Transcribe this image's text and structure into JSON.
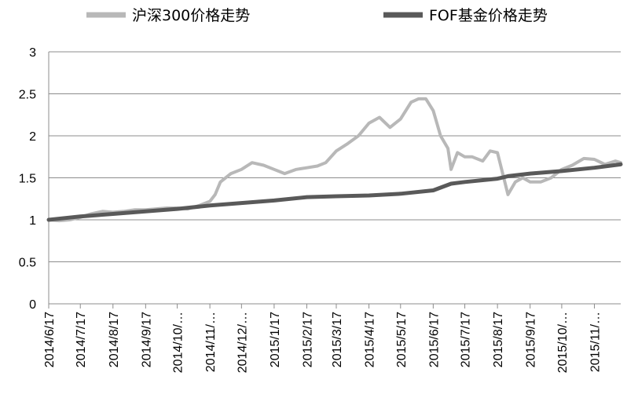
{
  "chart_data": {
    "type": "line",
    "title": "",
    "xlabel": "",
    "ylabel": "",
    "ylim": [
      0,
      3
    ],
    "yticks": [
      "0",
      "0.5",
      "1",
      "1.5",
      "2",
      "2.5",
      "3"
    ],
    "grid": "horizontal",
    "legend_position": "top",
    "x_ticks": [
      "2014/6/17",
      "2014/7/17",
      "2014/8/17",
      "2014/9/17",
      "2014/10/…",
      "2014/11/…",
      "2014/12/…",
      "2015/1/17",
      "2015/2/17",
      "2015/3/17",
      "2015/4/17",
      "2015/5/17",
      "2015/6/17",
      "2015/7/17",
      "2015/8/17",
      "2015/9/17",
      "2015/10/…",
      "2015/11/…"
    ],
    "x_range": [
      "2014/6/17",
      "2015/12/12"
    ],
    "series": [
      {
        "name": "沪深300价格走势",
        "color": "#b8b8b8",
        "points": [
          [
            "2014/6/17",
            1.0
          ],
          [
            "2014/6/27",
            0.99
          ],
          [
            "2014/7/7",
            1.0
          ],
          [
            "2014/7/17",
            1.03
          ],
          [
            "2014/7/27",
            1.07
          ],
          [
            "2014/8/7",
            1.1
          ],
          [
            "2014/8/17",
            1.09
          ],
          [
            "2014/8/27",
            1.1
          ],
          [
            "2014/9/7",
            1.12
          ],
          [
            "2014/9/17",
            1.12
          ],
          [
            "2014/9/27",
            1.13
          ],
          [
            "2014/10/7",
            1.14
          ],
          [
            "2014/10/17",
            1.14
          ],
          [
            "2014/10/27",
            1.13
          ],
          [
            "2014/11/7",
            1.17
          ],
          [
            "2014/11/17",
            1.22
          ],
          [
            "2014/11/22",
            1.3
          ],
          [
            "2014/11/27",
            1.45
          ],
          [
            "2014/12/2",
            1.5
          ],
          [
            "2014/12/7",
            1.55
          ],
          [
            "2014/12/17",
            1.6
          ],
          [
            "2014/12/27",
            1.68
          ],
          [
            "2015/1/7",
            1.65
          ],
          [
            "2015/1/17",
            1.6
          ],
          [
            "2015/1/27",
            1.55
          ],
          [
            "2015/2/7",
            1.6
          ],
          [
            "2015/2/17",
            1.62
          ],
          [
            "2015/2/27",
            1.64
          ],
          [
            "2015/3/7",
            1.68
          ],
          [
            "2015/3/17",
            1.82
          ],
          [
            "2015/3/27",
            1.9
          ],
          [
            "2015/4/7",
            2.0
          ],
          [
            "2015/4/17",
            2.15
          ],
          [
            "2015/4/27",
            2.22
          ],
          [
            "2015/5/7",
            2.1
          ],
          [
            "2015/5/17",
            2.2
          ],
          [
            "2015/5/27",
            2.4
          ],
          [
            "2015/6/3",
            2.44
          ],
          [
            "2015/6/10",
            2.44
          ],
          [
            "2015/6/17",
            2.3
          ],
          [
            "2015/6/24",
            2.0
          ],
          [
            "2015/7/1",
            1.85
          ],
          [
            "2015/7/4",
            1.6
          ],
          [
            "2015/7/10",
            1.8
          ],
          [
            "2015/7/17",
            1.75
          ],
          [
            "2015/7/24",
            1.75
          ],
          [
            "2015/8/3",
            1.7
          ],
          [
            "2015/8/10",
            1.82
          ],
          [
            "2015/8/17",
            1.8
          ],
          [
            "2015/8/22",
            1.55
          ],
          [
            "2015/8/27",
            1.3
          ],
          [
            "2015/9/3",
            1.45
          ],
          [
            "2015/9/10",
            1.5
          ],
          [
            "2015/9/17",
            1.45
          ],
          [
            "2015/9/27",
            1.45
          ],
          [
            "2015/10/7",
            1.5
          ],
          [
            "2015/10/17",
            1.6
          ],
          [
            "2015/10/27",
            1.65
          ],
          [
            "2015/11/7",
            1.73
          ],
          [
            "2015/11/17",
            1.72
          ],
          [
            "2015/11/27",
            1.66
          ],
          [
            "2015/12/7",
            1.7
          ],
          [
            "2015/12/12",
            1.68
          ]
        ]
      },
      {
        "name": "FOF基金价格走势",
        "color": "#595959",
        "points": [
          [
            "2014/6/17",
            1.0
          ],
          [
            "2014/7/17",
            1.04
          ],
          [
            "2014/8/17",
            1.07
          ],
          [
            "2014/9/17",
            1.1
          ],
          [
            "2014/10/17",
            1.13
          ],
          [
            "2014/11/17",
            1.17
          ],
          [
            "2014/12/17",
            1.2
          ],
          [
            "2015/1/17",
            1.23
          ],
          [
            "2015/2/17",
            1.27
          ],
          [
            "2015/3/17",
            1.28
          ],
          [
            "2015/4/17",
            1.29
          ],
          [
            "2015/5/17",
            1.31
          ],
          [
            "2015/6/17",
            1.35
          ],
          [
            "2015/7/4",
            1.43
          ],
          [
            "2015/7/17",
            1.45
          ],
          [
            "2015/8/17",
            1.49
          ],
          [
            "2015/8/27",
            1.52
          ],
          [
            "2015/9/17",
            1.55
          ],
          [
            "2015/10/17",
            1.58
          ],
          [
            "2015/11/17",
            1.62
          ],
          [
            "2015/12/12",
            1.66
          ]
        ]
      }
    ]
  }
}
